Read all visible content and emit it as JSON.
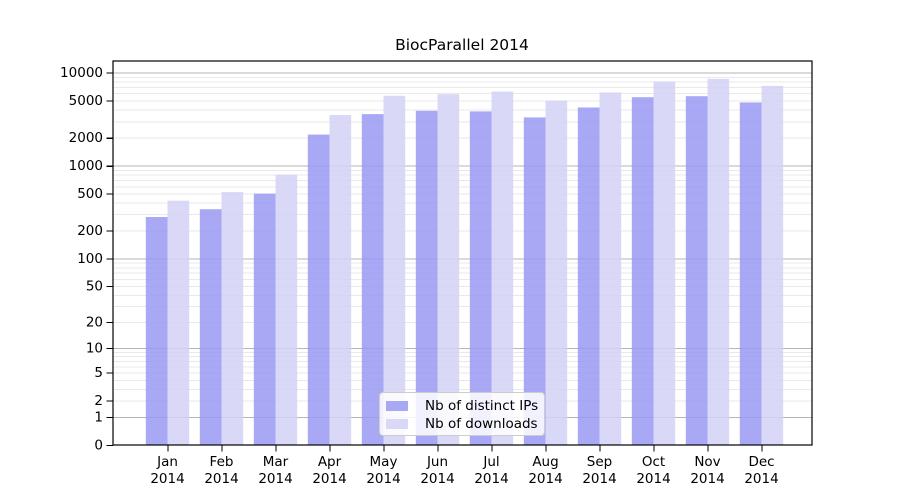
{
  "title": "BiocParallel 2014",
  "legend": {
    "items": [
      {
        "label": "Nb of distinct IPs",
        "color": "#a8a8f5"
      },
      {
        "label": "Nb of downloads",
        "color": "#d9d9f7"
      }
    ]
  },
  "chart_data": {
    "type": "bar",
    "title": "BiocParallel 2014",
    "categories": [
      "Jan 2014",
      "Feb 2014",
      "Mar 2014",
      "Apr 2014",
      "May 2014",
      "Jun 2014",
      "Jul 2014",
      "Aug 2014",
      "Sep 2014",
      "Oct 2014",
      "Nov 2014",
      "Dec 2014"
    ],
    "series": [
      {
        "name": "Nb of distinct IPs",
        "color": "#a8a8f5",
        "values": [
          280,
          340,
          500,
          2160,
          3580,
          3890,
          3830,
          3300,
          4220,
          5440,
          5580,
          4780
        ]
      },
      {
        "name": "Nb of downloads",
        "color": "#d9d9f7",
        "values": [
          420,
          520,
          800,
          3500,
          5640,
          5860,
          6260,
          5000,
          6110,
          8000,
          8570,
          7200
        ]
      }
    ],
    "yscale": "log10(1+y)",
    "ylim": [
      0,
      13000
    ],
    "yticks": [
      10000,
      5000,
      2000,
      1000,
      500,
      200,
      100,
      50,
      20,
      10,
      5,
      2,
      1,
      0
    ],
    "major_gridlines": [
      1,
      10,
      100,
      1000,
      10000
    ],
    "minor_gridline_decades": [
      1,
      10,
      100,
      1000
    ],
    "minor_gridline_multipliers": [
      2,
      3,
      4,
      5,
      6,
      7,
      8,
      9
    ],
    "grid": true,
    "legend_position": "inside-bottom-center",
    "colors": {
      "major_grid": "#b5b5b5",
      "minor_grid": "#e9e9e9",
      "axis": "#000000",
      "text": "#000000"
    }
  }
}
